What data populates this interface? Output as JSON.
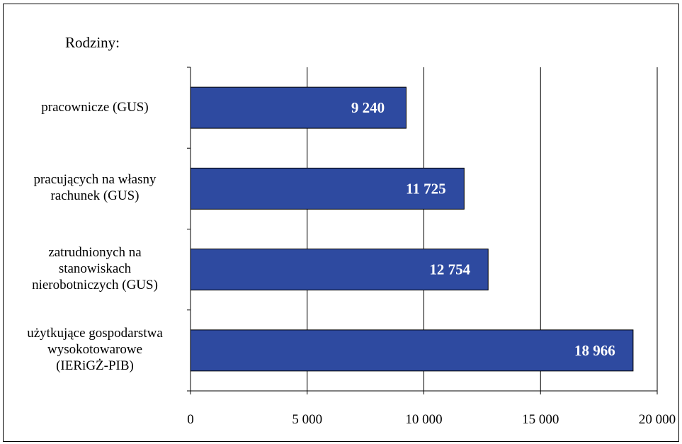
{
  "chart_data": {
    "type": "bar",
    "orientation": "horizontal",
    "legend_title": "Rodziny:",
    "categories": [
      [
        "pracownicze (GUS)"
      ],
      [
        "pracujących na własny",
        "rachunek (GUS)"
      ],
      [
        "zatrudnionych na",
        "stanowiskach",
        "nierobotniczych (GUS)"
      ],
      [
        "użytkujące gospodarstwa",
        "wysokotowarowe",
        "(IERiGŻ-PIB)"
      ]
    ],
    "values": [
      9240,
      11725,
      12754,
      18966
    ],
    "value_labels": [
      "9 240",
      "11 725",
      "12 754",
      "18 966"
    ],
    "xlim": [
      0,
      20000
    ],
    "x_ticks": [
      0,
      5000,
      10000,
      15000,
      20000
    ],
    "x_tick_labels": [
      "0",
      "5 000",
      "10 000",
      "15 000",
      "20 000"
    ],
    "grid": "vertical",
    "bar_color": "#2e4aa0",
    "bar_border_color": "#000000",
    "value_label_color": "#ffffff"
  }
}
